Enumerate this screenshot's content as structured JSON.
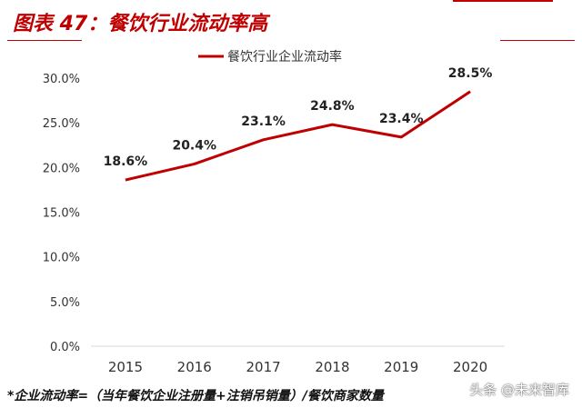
{
  "figure_title": "图表 47：餐饮行业流动率高",
  "footnote": "*企业流动率=（当年餐饮企业注册量+注销吊销量）/餐饮商家数量",
  "watermark": "头条 @未来智库",
  "colors": {
    "accent": "#c00000",
    "line": "#c00000",
    "axis": "#d9d9d9",
    "text": "#333333"
  },
  "chart_data": {
    "type": "line",
    "title": "",
    "xlabel": "",
    "ylabel": "",
    "categories": [
      "2015",
      "2016",
      "2017",
      "2018",
      "2019",
      "2020"
    ],
    "series": [
      {
        "name": "餐饮行业企业流动率",
        "values": [
          18.6,
          20.4,
          23.1,
          24.8,
          23.4,
          28.5
        ]
      }
    ],
    "data_labels": [
      "18.6%",
      "20.4%",
      "23.1%",
      "24.8%",
      "23.4%",
      "28.5%"
    ],
    "yticks": [
      "0.0%",
      "5.0%",
      "10.0%",
      "15.0%",
      "20.0%",
      "25.0%",
      "30.0%"
    ],
    "ylim": [
      0,
      30
    ],
    "grid": false,
    "legend": "top-center"
  }
}
